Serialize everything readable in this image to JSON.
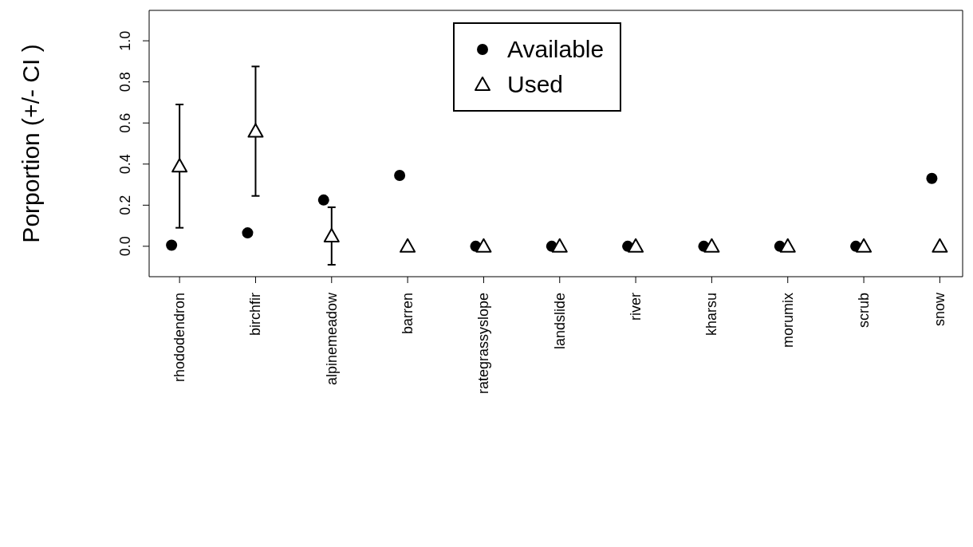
{
  "chart_data": {
    "type": "scatter",
    "ylabel": "Porportion (+/- CI )",
    "categories": [
      "rhododendron",
      "birchfir",
      "alpinemeadow",
      "barren",
      "rategrassyslope",
      "landslide",
      "river",
      "kharsu",
      "morumix",
      "scrub",
      "snow"
    ],
    "series": [
      {
        "name": "Available",
        "color": "#000000",
        "marker": "circle",
        "values": [
          0.005,
          0.065,
          0.225,
          0.345,
          0,
          0,
          0,
          0,
          0,
          0,
          0.33
        ]
      },
      {
        "name": "Used",
        "color": "#000000",
        "marker": "triangle",
        "values": [
          0.39,
          0.56,
          0.05,
          0,
          0,
          0,
          0,
          0,
          0,
          0,
          0
        ],
        "errors": [
          0.3,
          0.315,
          0.14,
          null,
          null,
          null,
          null,
          null,
          null,
          null,
          null
        ]
      }
    ],
    "ylim": [
      -0.148,
      1.148
    ],
    "yticks": [
      {
        "value": 0,
        "label": "0.0"
      },
      0.2,
      0.4,
      0.6,
      0.8,
      {
        "value": 1,
        "label": "1.0"
      }
    ],
    "grid": false,
    "legend": "top"
  }
}
